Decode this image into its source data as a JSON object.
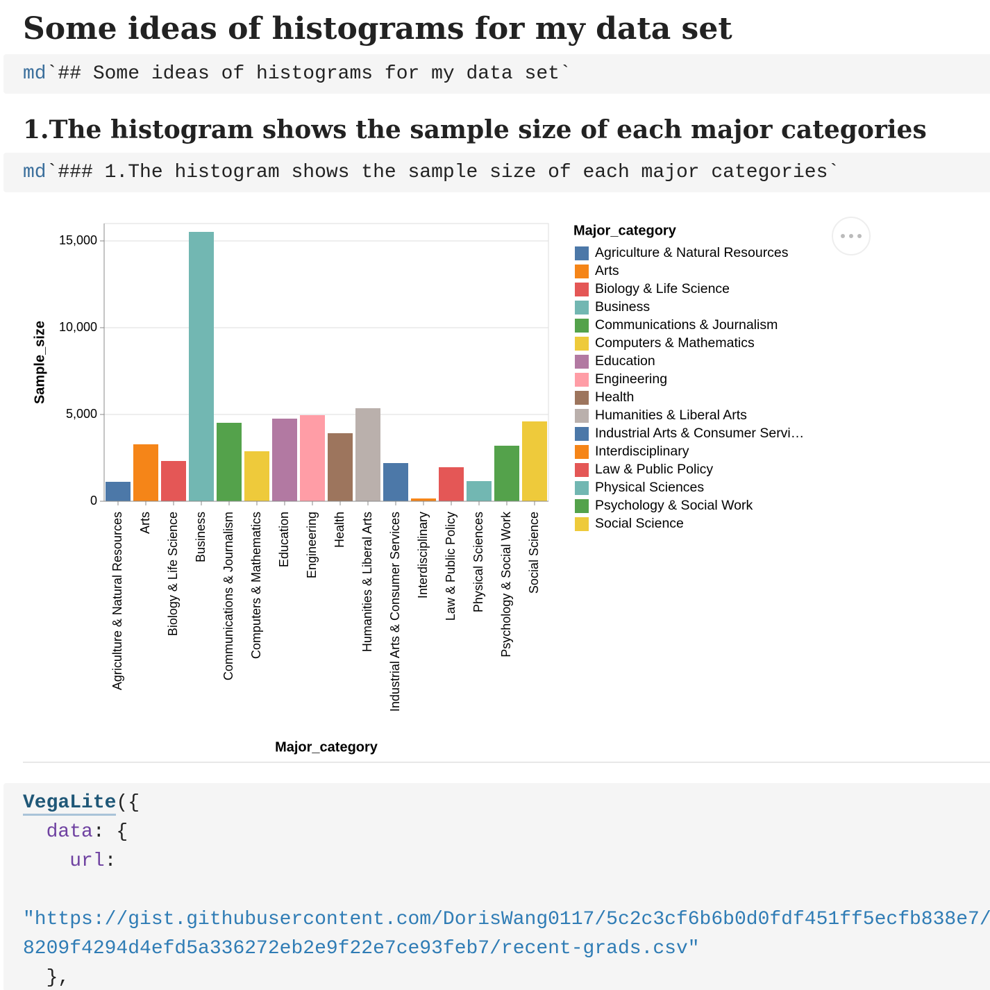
{
  "heading_1": "Some ideas of histograms for my data set",
  "cell_1": {
    "prefix": "md",
    "text": "`## Some ideas of histograms for my data set`"
  },
  "heading_2": "1.The histogram shows the sample size of each major categories",
  "cell_2": {
    "prefix": "md",
    "text": "`### 1.The histogram shows the sample size of each major categories`"
  },
  "code": [
    [
      "VegaLite",
      "({"
    ],
    [
      "data",
      ": {"
    ],
    [
      "url",
      ":"
    ],
    [
      "\"https://gist.githubusercontent.com/DorisWang0117/5c2c3cf6b6b0d0fdf451ff5ecfb838e7/"
    ],
    [
      "8209f4294d4efd5a336272eb2e9f22e7ce93feb7/recent-grads.csv\""
    ],
    [
      "},"
    ]
  ],
  "chart_data": {
    "type": "bar",
    "x_label": "Major_category",
    "y_label": "Sample_size",
    "categories": [
      "Agriculture & Natural Resources",
      "Arts",
      "Biology & Life Science",
      "Business",
      "Communications & Journalism",
      "Computers & Mathematics",
      "Education",
      "Engineering",
      "Health",
      "Humanities & Liberal Arts",
      "Industrial Arts & Consumer Services",
      "Interdisciplinary",
      "Law & Public Policy",
      "Physical Sciences",
      "Psychology & Social Work",
      "Social Science"
    ],
    "values": [
      1120,
      3280,
      2320,
      15520,
      4520,
      2880,
      4760,
      4960,
      3920,
      5360,
      2200,
      160,
      1960,
      1160,
      3200,
      4600
    ],
    "colors": [
      "#4c78a8",
      "#f58518",
      "#e45756",
      "#72b7b2",
      "#54a24b",
      "#eeca3b",
      "#b279a2",
      "#ff9da6",
      "#9d755d",
      "#bab0ac",
      "#4c78a8",
      "#f58518",
      "#e45756",
      "#72b7b2",
      "#54a24b",
      "#eeca3b"
    ],
    "ylim": [
      0,
      16000
    ],
    "yticks": [
      0,
      {
        "value": 5000,
        "label": "5,000"
      },
      {
        "value": 10000,
        "label": "10,000"
      },
      {
        "value": 15000,
        "label": "15,000"
      }
    ],
    "grid": true,
    "legend": {
      "position": "right",
      "title": "Major_category",
      "labels": [
        "Agriculture & Natural Resources",
        "Arts",
        "Biology & Life Science",
        "Business",
        "Communications & Journalism",
        "Computers & Mathematics",
        "Education",
        "Engineering",
        "Health",
        "Humanities & Liberal Arts",
        "Industrial Arts & Consumer Servi…",
        "Interdisciplinary",
        "Law & Public Policy",
        "Physical Sciences",
        "Psychology & Social Work",
        "Social Science"
      ]
    }
  }
}
